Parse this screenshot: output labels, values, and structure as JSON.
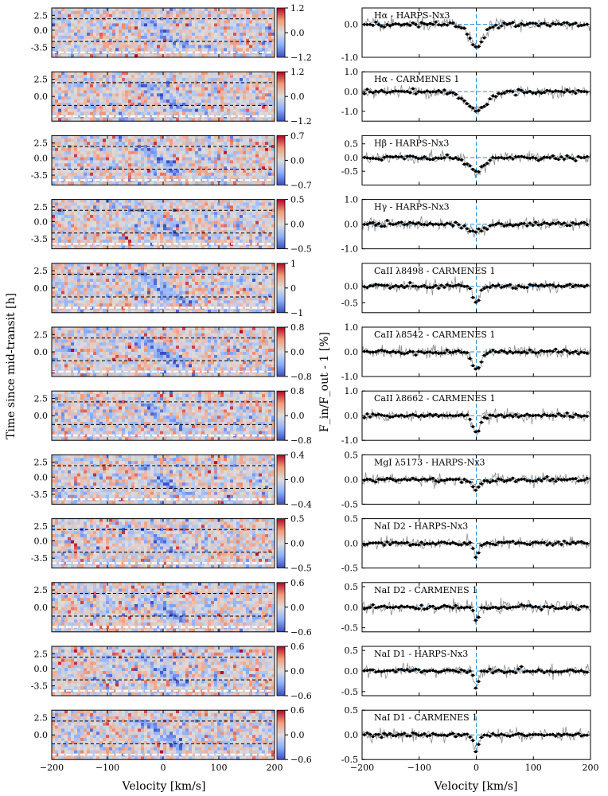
{
  "figure": {
    "ylabel_left": "Time since mid-transit [h]",
    "ylabel_right": "F_in/F_out - 1 [%]",
    "xlabel": "Velocity [km/s]",
    "xticks": [
      -200,
      -100,
      0,
      100,
      200
    ],
    "xlim": [
      -200,
      200
    ]
  },
  "chart_data": [
    {
      "type": "heatmap",
      "panel": 1,
      "colorbar": {
        "ticks": [
          "1.2",
          "0.0",
          "−1.2"
        ],
        "range": [
          -1.2,
          1.2
        ],
        "cmap": "coolwarm"
      },
      "yticks": [
        "2.5",
        "0.0",
        "-3.5"
      ],
      "title": "Hα - HARPS-Nx3"
    },
    {
      "type": "heatmap",
      "panel": 2,
      "colorbar": {
        "ticks": [
          "1.2",
          "0.0",
          "−1.2"
        ],
        "range": [
          -1.2,
          1.2
        ],
        "cmap": "coolwarm"
      },
      "yticks": [
        "2.5",
        "0.0"
      ],
      "title": "Hα - CARMENES 1"
    },
    {
      "type": "heatmap",
      "panel": 3,
      "colorbar": {
        "ticks": [
          "0.7",
          "0.0",
          "−0.7"
        ],
        "range": [
          -0.7,
          0.7
        ],
        "cmap": "coolwarm"
      },
      "yticks": [
        "2.5",
        "0.0",
        "-3.5"
      ],
      "title": "Hβ - HARPS-Nx3"
    },
    {
      "type": "heatmap",
      "panel": 4,
      "colorbar": {
        "ticks": [
          "0.5",
          "0.0",
          "−0.5"
        ],
        "range": [
          -0.5,
          0.5
        ],
        "cmap": "coolwarm"
      },
      "yticks": [
        "2.5",
        "0.0",
        "-3.5"
      ],
      "title": "Hγ - HARPS-Nx3"
    },
    {
      "type": "heatmap",
      "panel": 5,
      "colorbar": {
        "ticks": [
          "1",
          "0",
          "−1"
        ],
        "range": [
          -1,
          1
        ],
        "cmap": "coolwarm"
      },
      "yticks": [
        "2.5",
        "0.0"
      ],
      "title": "CaII λ8498 - CARMENES 1"
    },
    {
      "type": "heatmap",
      "panel": 6,
      "colorbar": {
        "ticks": [
          "0.8",
          "0.0",
          "−0.8"
        ],
        "range": [
          -0.8,
          0.8
        ],
        "cmap": "coolwarm"
      },
      "yticks": [
        "2.5",
        "0.0"
      ],
      "title": "CaII λ8542 - CARMENES 1"
    },
    {
      "type": "heatmap",
      "panel": 7,
      "colorbar": {
        "ticks": [
          "0.8",
          "0.0",
          "−0.8"
        ],
        "range": [
          -0.8,
          0.8
        ],
        "cmap": "coolwarm"
      },
      "yticks": [
        "2.5",
        "0.0"
      ],
      "title": "CaII λ8662 - CARMENES 1"
    },
    {
      "type": "heatmap",
      "panel": 8,
      "colorbar": {
        "ticks": [
          "0.4",
          "0.0",
          "−0.4"
        ],
        "range": [
          -0.4,
          0.4
        ],
        "cmap": "coolwarm"
      },
      "yticks": [
        "2.5",
        "0.0",
        "-3.5"
      ],
      "title": "MgI λ5173 - HARPS-Nx3"
    },
    {
      "type": "heatmap",
      "panel": 9,
      "colorbar": {
        "ticks": [
          "0.5",
          "0.0",
          "−0.5"
        ],
        "range": [
          -0.5,
          0.5
        ],
        "cmap": "coolwarm"
      },
      "yticks": [
        "2.5",
        "0.0",
        "-3.5"
      ],
      "title": "NaI D2 - HARPS-Nx3"
    },
    {
      "type": "heatmap",
      "panel": 10,
      "colorbar": {
        "ticks": [
          "0.6",
          "0.0",
          "−0.6"
        ],
        "range": [
          -0.6,
          0.6
        ],
        "cmap": "coolwarm"
      },
      "yticks": [
        "2.5",
        "0.0"
      ],
      "title": "NaI D2 - CARMENES 1"
    },
    {
      "type": "heatmap",
      "panel": 11,
      "colorbar": {
        "ticks": [
          "0.6",
          "0.0",
          "−0.6"
        ],
        "range": [
          -0.6,
          0.6
        ],
        "cmap": "coolwarm"
      },
      "yticks": [
        "2.5",
        "0.0",
        "-3.5"
      ],
      "title": "NaI D1 - HARPS-Nx3"
    },
    {
      "type": "heatmap",
      "panel": 12,
      "colorbar": {
        "ticks": [
          "0.6",
          "0.0",
          "−0.6"
        ],
        "range": [
          -0.6,
          0.6
        ],
        "cmap": "coolwarm"
      },
      "yticks": [
        "2.5",
        "0.0"
      ],
      "title": "NaI D1 - CARMENES 1"
    },
    {
      "type": "line",
      "panel": 1,
      "title": "Hα - HARPS-Nx3",
      "ylim": [
        -1.0,
        0.5
      ],
      "yticks": [
        "0.0",
        "-1.0"
      ],
      "depth": -0.7,
      "width": 12
    },
    {
      "type": "line",
      "panel": 2,
      "title": "Hα - CARMENES 1",
      "ylim": [
        -1.5,
        1.0
      ],
      "yticks": [
        "1.0",
        "0.0",
        "-1.0"
      ],
      "depth": -0.9,
      "width": 20
    },
    {
      "type": "line",
      "panel": 3,
      "title": "Hβ - HARPS-Nx3",
      "ylim": [
        -1.0,
        0.8
      ],
      "yticks": [
        "0.5",
        "0.0",
        "-0.5"
      ],
      "depth": -0.5,
      "width": 14
    },
    {
      "type": "line",
      "panel": 4,
      "title": "Hγ - HARPS-Nx3",
      "ylim": [
        -1.0,
        1.0
      ],
      "yticks": [
        "1.0",
        "0.0",
        "-1.0"
      ],
      "depth": -0.3,
      "width": 14
    },
    {
      "type": "line",
      "panel": 5,
      "title": "CaII λ8498 - CARMENES 1",
      "ylim": [
        -0.8,
        0.7
      ],
      "yticks": [
        "0.0",
        "-0.5"
      ],
      "depth": -0.5,
      "width": 6
    },
    {
      "type": "line",
      "panel": 6,
      "title": "CaII λ8542 - CARMENES 1",
      "ylim": [
        -1.0,
        1.0
      ],
      "yticks": [
        "1.0",
        "0.0",
        "-1.0"
      ],
      "depth": -0.7,
      "width": 8
    },
    {
      "type": "line",
      "panel": 7,
      "title": "CaII λ8662 - CARMENES 1",
      "ylim": [
        -1.0,
        1.0
      ],
      "yticks": [
        "1.0",
        "0.0",
        "-1.0"
      ],
      "depth": -0.7,
      "width": 6
    },
    {
      "type": "line",
      "panel": 8,
      "title": "MgI λ5173 - HARPS-Nx3",
      "ylim": [
        -0.5,
        0.5
      ],
      "yticks": [
        "0.5",
        "0.0",
        "-0.5"
      ],
      "depth": -0.2,
      "width": 8
    },
    {
      "type": "line",
      "panel": 9,
      "title": "NaI D2 - HARPS-Nx3",
      "ylim": [
        -0.5,
        0.5
      ],
      "yticks": [
        "0.5",
        "0.0",
        "-0.5"
      ],
      "depth": -0.3,
      "width": 4
    },
    {
      "type": "line",
      "panel": 10,
      "title": "NaI D2 - CARMENES 1",
      "ylim": [
        -0.6,
        0.6
      ],
      "yticks": [
        "0.5",
        "0.0",
        "-0.5"
      ],
      "depth": -0.35,
      "width": 4
    },
    {
      "type": "line",
      "panel": 11,
      "title": "NaI D1 - HARPS-Nx3",
      "ylim": [
        -0.6,
        0.6
      ],
      "yticks": [
        "0.5",
        "0.0",
        "-0.5"
      ],
      "depth": -0.4,
      "width": 4
    },
    {
      "type": "line",
      "panel": 12,
      "title": "NaI D1 - CARMENES 1",
      "ylim": [
        -0.5,
        0.5
      ],
      "yticks": [
        "0.5",
        "0.0",
        "-0.5"
      ],
      "depth": -0.3,
      "width": 5
    }
  ]
}
